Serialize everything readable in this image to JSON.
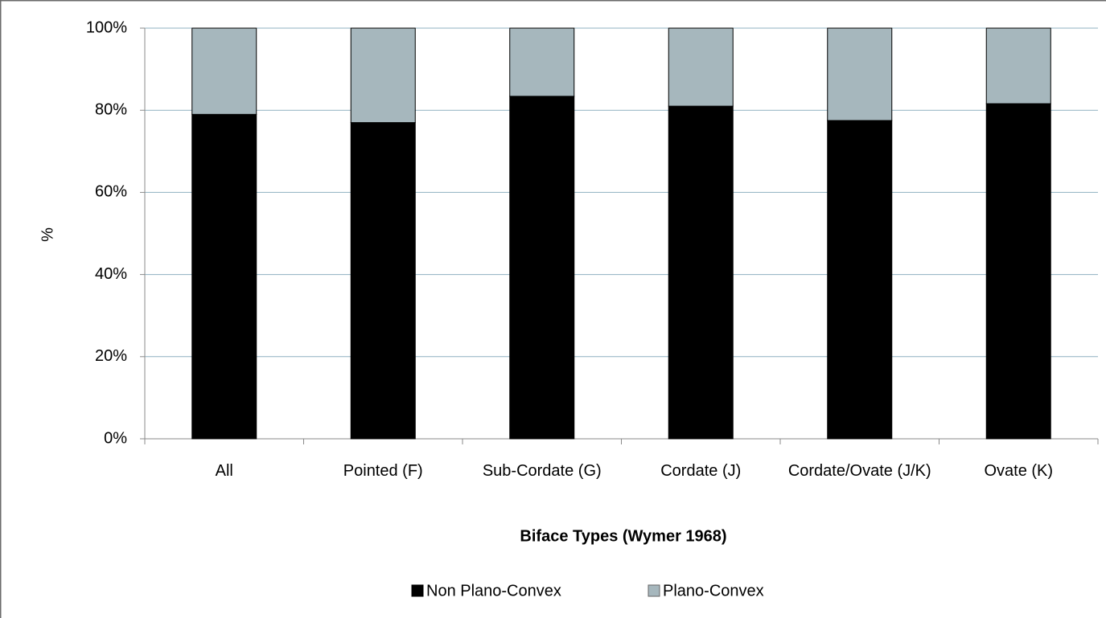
{
  "chart_data": {
    "type": "stacked_bar",
    "categories": [
      "All",
      "Pointed (F)",
      "Sub-Cordate (G)",
      "Cordate (J)",
      "Cordate/Ovate (J/K)",
      "Ovate (K)"
    ],
    "series": [
      {
        "name": "Non Plano-Convex",
        "color": "#000000",
        "values": [
          79,
          77,
          83.4,
          81,
          77.5,
          81.6
        ]
      },
      {
        "name": "Plano-Convex",
        "color": "#a6b7bd",
        "values": [
          21,
          23,
          16.6,
          19,
          22.5,
          18.4
        ]
      }
    ],
    "ylim": [
      0,
      100
    ],
    "yticks": [
      {
        "value": 0,
        "label": "0%"
      },
      {
        "value": 20,
        "label": "20%"
      },
      {
        "value": 40,
        "label": "40%"
      },
      {
        "value": 60,
        "label": "60%"
      },
      {
        "value": 80,
        "label": "80%"
      },
      {
        "value": 100,
        "label": "100%"
      }
    ],
    "y_label": "%",
    "x_label": "Biface Types (Wymer 1968)",
    "grid": true,
    "legend": "bottom"
  }
}
